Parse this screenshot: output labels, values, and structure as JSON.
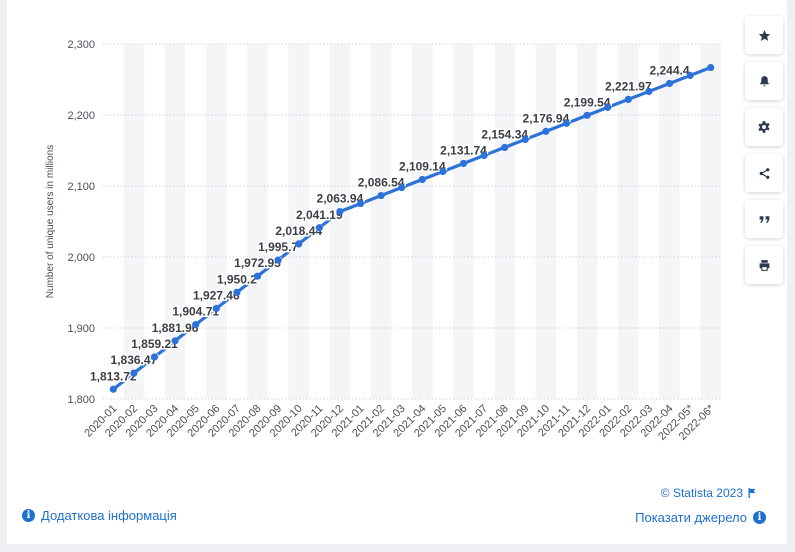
{
  "chart_data": {
    "type": "line",
    "ylabel": "Number of unique users in millions",
    "xlabel": "",
    "title": "",
    "ylim": [
      1800,
      2300
    ],
    "yticks": [
      1800,
      1900,
      2000,
      2100,
      2200,
      2300
    ],
    "ytick_labels": [
      "1,800",
      "1,900",
      "2,000",
      "2,100",
      "2,200",
      "2,300"
    ],
    "categories": [
      "2020-01",
      "2020-02",
      "2020-03",
      "2020-04",
      "2020-05",
      "2020-06",
      "2020-07",
      "2020-08",
      "2020-09",
      "2020-10",
      "2020-11",
      "2020-12",
      "2021-01",
      "2021-02",
      "2021-03",
      "2021-04",
      "2021-05",
      "2021-06",
      "2021-07",
      "2021-08",
      "2021-09",
      "2021-10",
      "2021-11",
      "2021-12",
      "2022-01",
      "2022-02",
      "2022-03",
      "2022-04",
      "2022-05*",
      "2022-06*"
    ],
    "values": [
      1813.72,
      1836.47,
      1859.21,
      1881.96,
      1904.71,
      1927.46,
      1950.2,
      1972.95,
      1995.7,
      2018.44,
      2041.19,
      2063.94,
      2075.24,
      2086.54,
      2097.84,
      2109.14,
      2120.44,
      2131.74,
      2143.04,
      2154.34,
      2165.64,
      2176.94,
      2188.24,
      2199.54,
      2210.76,
      2221.97,
      2233.19,
      2244.4,
      2255.62,
      2266.83
    ],
    "data_labels": [
      "1,813.72",
      "1,836.47",
      "1,859.21",
      "1,881.96",
      "1,904.71",
      "1,927.46",
      "1,950.2",
      "1,972.95",
      "1,995.7",
      "2,018.44",
      "2,041.19",
      "2,063.94",
      "",
      "2,086.54",
      "",
      "2,109.14",
      "",
      "2,131.74",
      "",
      "2,154.34",
      "",
      "2,176.94",
      "",
      "2,199.54",
      "",
      "2,221.97",
      "",
      "2,244.4",
      "",
      ""
    ],
    "grid": true,
    "line_color": "#2d72d9"
  },
  "toolbar": [
    {
      "name": "star-icon",
      "label": "favorite"
    },
    {
      "name": "bell-icon",
      "label": "notifications"
    },
    {
      "name": "gear-icon",
      "label": "settings"
    },
    {
      "name": "share-icon",
      "label": "share"
    },
    {
      "name": "quote-icon",
      "label": "cite"
    },
    {
      "name": "print-icon",
      "label": "print"
    }
  ],
  "footer": {
    "more_info": "Додаткова інформація",
    "copyright": "© Statista 2023",
    "show_source": "Показати джерело",
    "info_glyph": "i"
  }
}
